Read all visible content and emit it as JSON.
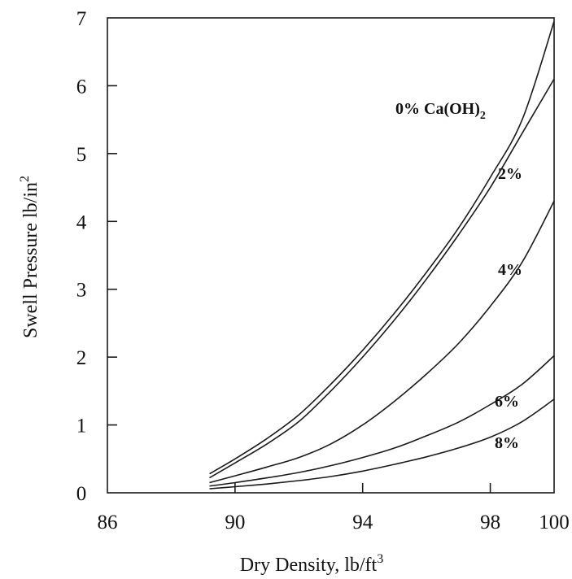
{
  "chart_data": {
    "type": "line",
    "xlabel": "Dry Density, lb/ft",
    "xlabel_sup": "3",
    "ylabel": "Swell Pressure lb/in",
    "ylabel_sup": "2",
    "xlim": [
      86,
      100
    ],
    "ylim": [
      0,
      7
    ],
    "xticks": [
      86,
      90,
      94,
      98,
      100
    ],
    "yticks": [
      0,
      1,
      2,
      3,
      4,
      5,
      6,
      7
    ],
    "grid": false,
    "series": [
      {
        "name": "0% Ca(OH)",
        "name_sub": "2",
        "x": [
          89.2,
          90,
          91,
          92,
          93,
          94,
          95,
          96,
          97,
          98,
          99,
          100
        ],
        "y": [
          0.28,
          0.5,
          0.8,
          1.15,
          1.6,
          2.1,
          2.65,
          3.25,
          3.9,
          4.65,
          5.5,
          6.95
        ]
      },
      {
        "name": "2%",
        "x": [
          89.2,
          90,
          91,
          92,
          93,
          94,
          95,
          96,
          97,
          98,
          99,
          100
        ],
        "y": [
          0.22,
          0.44,
          0.72,
          1.05,
          1.5,
          2.0,
          2.55,
          3.15,
          3.8,
          4.5,
          5.3,
          6.1
        ]
      },
      {
        "name": "4%",
        "x": [
          89.2,
          90,
          91,
          92,
          93,
          94,
          95,
          96,
          97,
          98,
          99,
          100
        ],
        "y": [
          0.15,
          0.25,
          0.38,
          0.52,
          0.72,
          1.0,
          1.35,
          1.75,
          2.2,
          2.75,
          3.4,
          4.3
        ]
      },
      {
        "name": "6%",
        "x": [
          89.2,
          90,
          91,
          92,
          93,
          94,
          95,
          96,
          97,
          98,
          99,
          100
        ],
        "y": [
          0.1,
          0.15,
          0.22,
          0.3,
          0.4,
          0.52,
          0.66,
          0.84,
          1.04,
          1.3,
          1.6,
          2.02
        ]
      },
      {
        "name": "8%",
        "x": [
          89.2,
          90,
          91,
          92,
          93,
          94,
          95,
          96,
          97,
          98,
          99,
          100
        ],
        "y": [
          0.06,
          0.09,
          0.13,
          0.18,
          0.24,
          0.32,
          0.42,
          0.53,
          0.66,
          0.82,
          1.05,
          1.38
        ]
      }
    ]
  }
}
